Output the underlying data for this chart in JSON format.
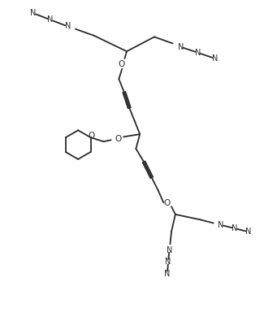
{
  "bg_color": "#ffffff",
  "line_color": "#2a2a2a",
  "line_width": 1.3,
  "text_color": "#2a2a2a",
  "font_size": 7.0,
  "figsize": [
    3.25,
    3.95
  ],
  "dpi": 100,
  "xlim": [
    0,
    10
  ],
  "ylim": [
    0,
    12
  ]
}
